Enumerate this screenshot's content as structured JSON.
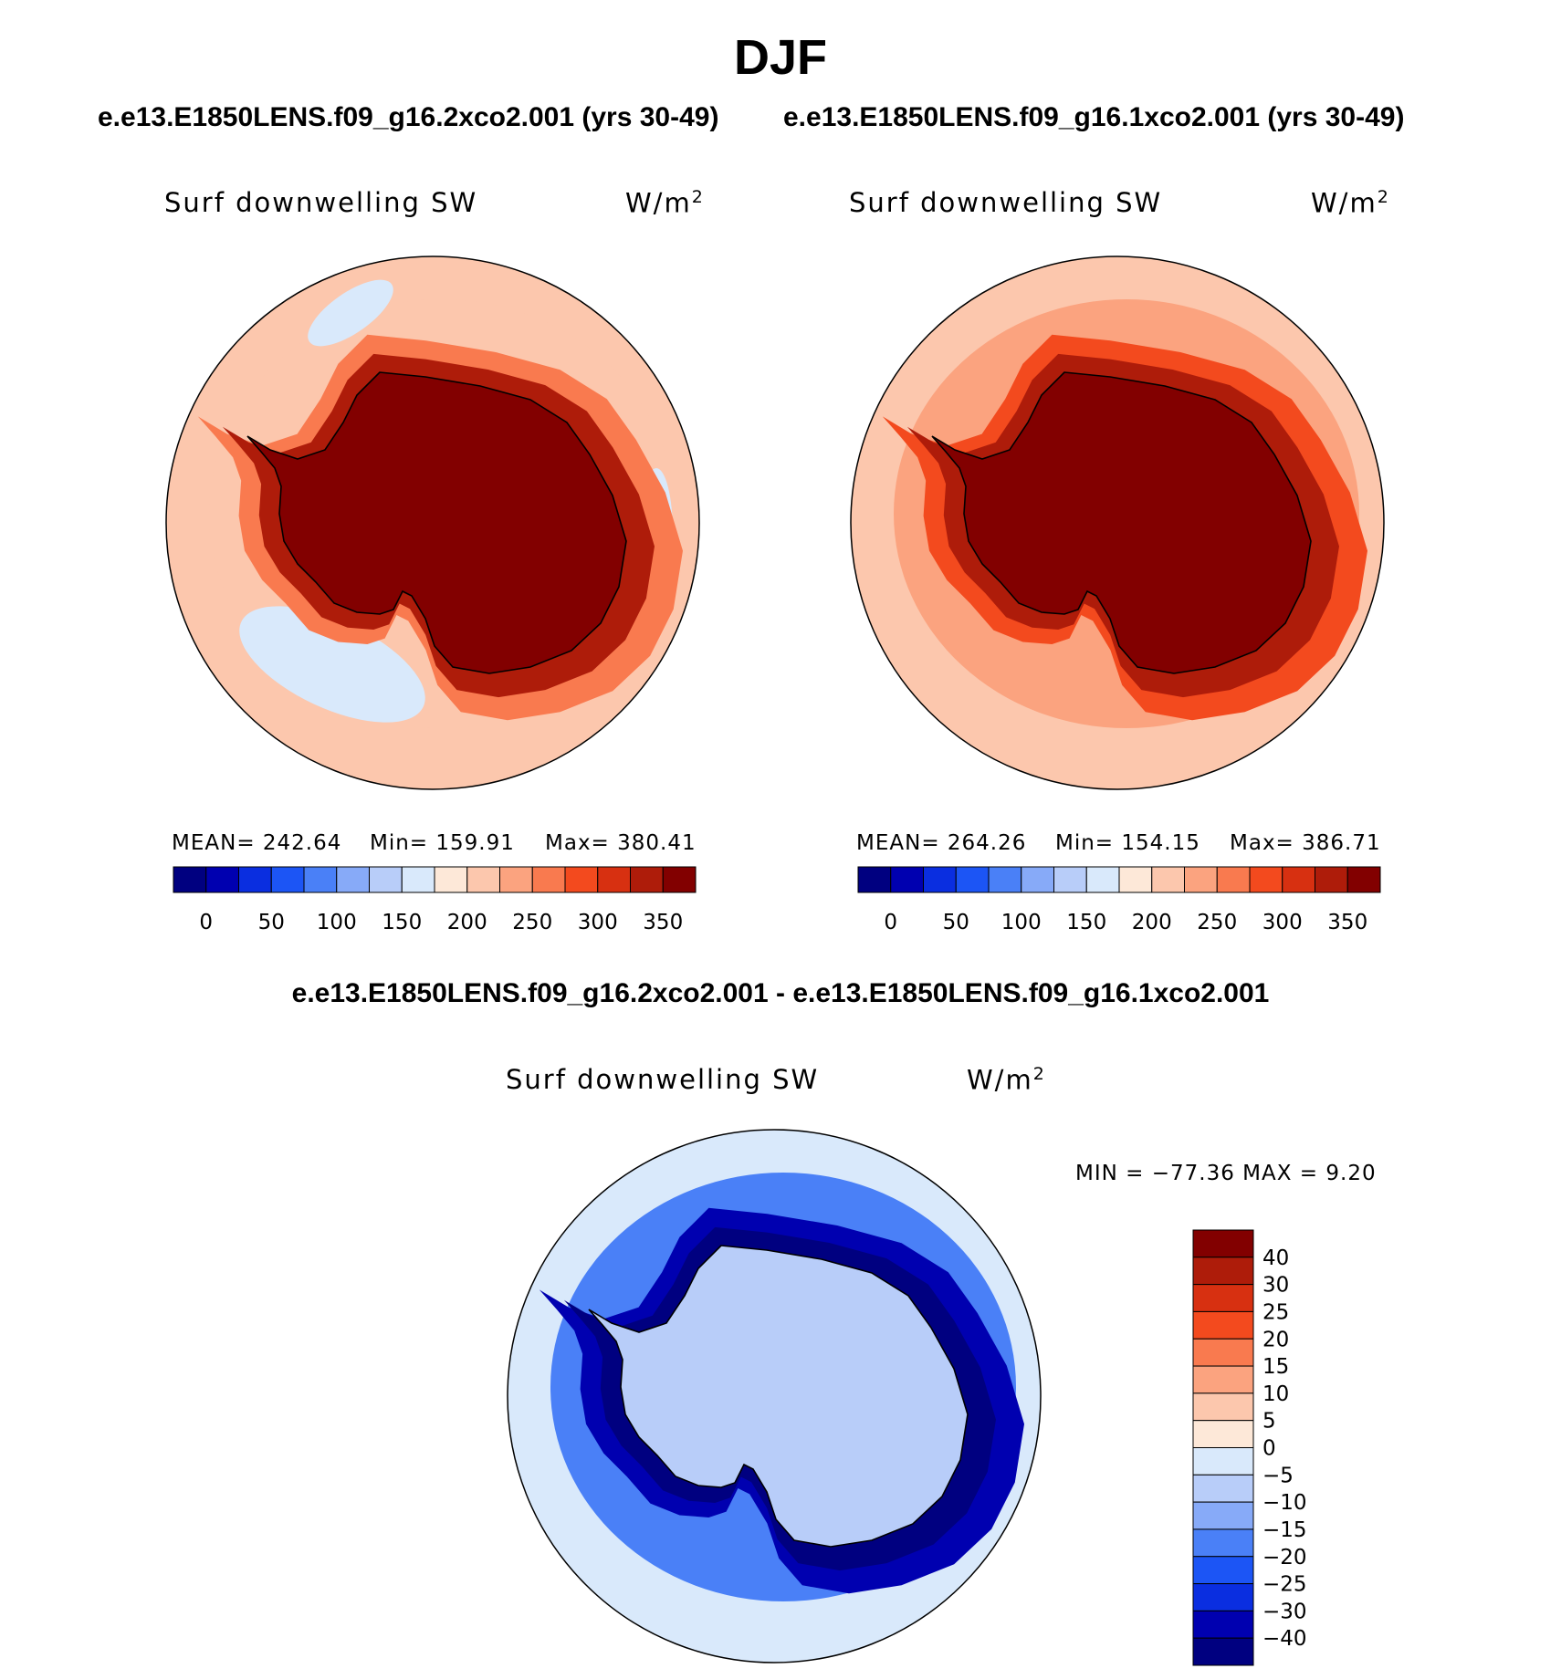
{
  "page": {
    "title": "DJF",
    "top_subtitle_left": "e.e13.E1850LENS.f09_g16.2xco2.001 (yrs 30-49)",
    "top_subtitle_right": "e.e13.E1850LENS.f09_g16.1xco2.001 (yrs 30-49)",
    "diff_title": "e.e13.E1850LENS.f09_g16.2xco2.001 - e.e13.E1850LENS.f09_g16.1xco2.001"
  },
  "chart_data": [
    {
      "type": "heatmap",
      "projection": "south polar stereographic",
      "variable": "Surf downwelling SW",
      "units": "W/m",
      "units_sup": "2",
      "mean_text": "MEAN= 242.64",
      "min_text": "Min= 159.91",
      "max_text": "Max= 380.41",
      "mean": 242.64,
      "min": 159.91,
      "max": 380.41,
      "colorbar": {
        "orientation": "horizontal",
        "tick_labels": [
          "0",
          "50",
          "100",
          "150",
          "200",
          "250",
          "300",
          "350"
        ],
        "levels": [
          -25,
          0,
          25,
          50,
          75,
          100,
          125,
          150,
          175,
          200,
          225,
          250,
          275,
          300,
          325,
          350,
          375
        ],
        "colors": [
          "#000080",
          "#0000b0",
          "#0a2ee0",
          "#1c55f5",
          "#4a80f7",
          "#87aaf8",
          "#b8cdf9",
          "#d9e9fb",
          "#fde8d8",
          "#fcc7ad",
          "#fba37f",
          "#f97a4f",
          "#f34a1e",
          "#d73011",
          "#ae1c0a",
          "#820000"
        ]
      },
      "regions": [
        {
          "name": "antarctic-interior",
          "value": 370
        },
        {
          "name": "coastal-ring",
          "value": 330
        },
        {
          "name": "southern-ocean",
          "value": 210
        },
        {
          "name": "pacific-sector-minimum",
          "value": 165
        }
      ]
    },
    {
      "type": "heatmap",
      "projection": "south polar stereographic",
      "variable": "Surf downwelling SW",
      "units": "W/m",
      "units_sup": "2",
      "mean_text": "MEAN= 264.26",
      "min_text": "Min= 154.15",
      "max_text": "Max= 386.71",
      "mean": 264.26,
      "min": 154.15,
      "max": 386.71,
      "colorbar": {
        "orientation": "horizontal",
        "tick_labels": [
          "0",
          "50",
          "100",
          "150",
          "200",
          "250",
          "300",
          "350"
        ],
        "levels": [
          -25,
          0,
          25,
          50,
          75,
          100,
          125,
          150,
          175,
          200,
          225,
          250,
          275,
          300,
          325,
          350,
          375
        ],
        "colors": [
          "#000080",
          "#0000b0",
          "#0a2ee0",
          "#1c55f5",
          "#4a80f7",
          "#87aaf8",
          "#b8cdf9",
          "#d9e9fb",
          "#fde8d8",
          "#fcc7ad",
          "#fba37f",
          "#f97a4f",
          "#f34a1e",
          "#d73011",
          "#ae1c0a",
          "#820000"
        ]
      },
      "regions": [
        {
          "name": "antarctic-interior",
          "value": 375
        },
        {
          "name": "coastal-ring",
          "value": 340
        },
        {
          "name": "southern-ocean",
          "value": 240
        },
        {
          "name": "outer-ocean",
          "value": 205
        }
      ]
    },
    {
      "type": "heatmap",
      "projection": "south polar stereographic",
      "variable": "Surf downwelling SW",
      "units": "W/m",
      "units_sup": "2",
      "minmax_text": "MIN = −77.36 MAX =    9.20",
      "min": -77.36,
      "max": 9.2,
      "colorbar": {
        "orientation": "vertical",
        "tick_labels": [
          "40",
          "30",
          "25",
          "20",
          "15",
          "10",
          "5",
          "0",
          "−5",
          "−10",
          "−15",
          "−20",
          "−25",
          "−30",
          "−40"
        ],
        "colors_top_to_bottom": [
          "#820000",
          "#ae1c0a",
          "#d73011",
          "#f34a1e",
          "#f97a4f",
          "#fba37f",
          "#fcc7ad",
          "#fde8d8",
          "#d9e9fb",
          "#b8cdf9",
          "#87aaf8",
          "#4a80f7",
          "#1c55f5",
          "#0a2ee0",
          "#0000b0",
          "#000080"
        ]
      },
      "regions": [
        {
          "name": "antarctic-interior",
          "value": -7
        },
        {
          "name": "coastal-ring",
          "value": -45
        },
        {
          "name": "southern-ocean",
          "value": -20
        },
        {
          "name": "outer-ocean",
          "value": -3
        }
      ]
    }
  ]
}
